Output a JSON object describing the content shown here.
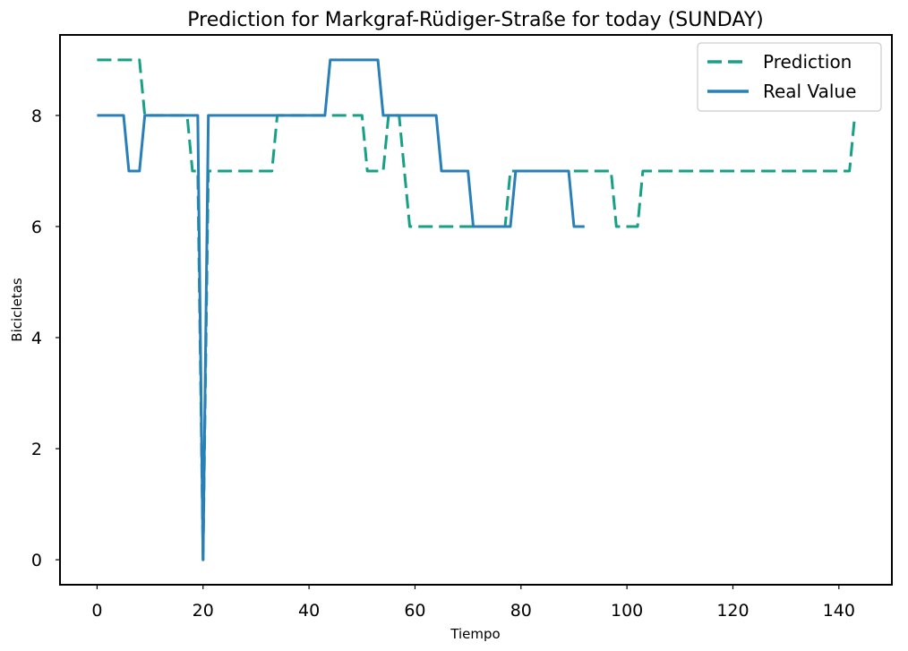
{
  "chart_data": {
    "type": "line",
    "title": "Prediction for Markgraf-Rüdiger-Straße for today (SUNDAY)",
    "xlabel": "Tiempo",
    "ylabel": "Bicicletas",
    "xlim": [
      -7,
      150
    ],
    "ylim": [
      -0.45,
      9.45
    ],
    "xticks": [
      0,
      20,
      40,
      60,
      80,
      100,
      120,
      140
    ],
    "yticks": [
      0,
      2,
      4,
      6,
      8
    ],
    "grid": false,
    "legend_position": "top-right",
    "series": [
      {
        "name": "Prediction",
        "style": "dashed",
        "color": "#16a085",
        "x": [
          0,
          1,
          2,
          3,
          4,
          5,
          6,
          7,
          8,
          9,
          10,
          11,
          12,
          13,
          14,
          15,
          16,
          17,
          18,
          19,
          20,
          21,
          22,
          23,
          24,
          25,
          26,
          27,
          28,
          29,
          30,
          31,
          32,
          33,
          34,
          35,
          36,
          37,
          38,
          39,
          40,
          41,
          42,
          43,
          44,
          45,
          46,
          47,
          48,
          49,
          50,
          51,
          52,
          53,
          54,
          55,
          56,
          57,
          58,
          59,
          60,
          61,
          62,
          63,
          64,
          65,
          66,
          67,
          68,
          69,
          70,
          71,
          72,
          73,
          74,
          75,
          76,
          77,
          78,
          79,
          80,
          81,
          82,
          83,
          84,
          85,
          86,
          87,
          88,
          89,
          90,
          91,
          92,
          93,
          94,
          95,
          96,
          97,
          98,
          99,
          100,
          101,
          102,
          103,
          104,
          105,
          106,
          107,
          108,
          109,
          110,
          111,
          112,
          113,
          114,
          115,
          116,
          117,
          118,
          119,
          120,
          121,
          122,
          123,
          124,
          125,
          126,
          127,
          128,
          129,
          130,
          131,
          132,
          133,
          134,
          135,
          136,
          137,
          138,
          139,
          140,
          141,
          142,
          143
        ],
        "values": [
          9,
          9,
          9,
          9,
          9,
          9,
          9,
          9,
          9,
          8,
          8,
          8,
          8,
          8,
          8,
          8,
          8,
          8,
          7,
          7,
          0,
          7,
          7,
          7,
          7,
          7,
          7,
          7,
          7,
          7,
          7,
          7,
          7,
          7,
          8,
          8,
          8,
          8,
          8,
          8,
          8,
          8,
          8,
          8,
          8,
          8,
          8,
          8,
          8,
          8,
          8,
          7,
          7,
          7,
          7,
          8,
          8,
          8,
          7,
          6,
          6,
          6,
          6,
          6,
          6,
          6,
          6,
          6,
          6,
          6,
          6,
          6,
          6,
          6,
          6,
          6,
          6,
          6,
          7,
          7,
          7,
          7,
          7,
          7,
          7,
          7,
          7,
          7,
          7,
          7,
          7,
          7,
          7,
          7,
          7,
          7,
          7,
          7,
          6,
          6,
          6,
          6,
          6,
          7,
          7,
          7,
          7,
          7,
          7,
          7,
          7,
          7,
          7,
          7,
          7,
          7,
          7,
          7,
          7,
          7,
          7,
          7,
          7,
          7,
          7,
          7,
          7,
          7,
          7,
          7,
          7,
          7,
          7,
          7,
          7,
          7,
          7,
          7,
          7,
          7,
          7,
          7,
          7,
          8
        ]
      },
      {
        "name": "Real Value",
        "style": "solid",
        "color": "#2980b9",
        "x": [
          0,
          1,
          2,
          3,
          4,
          5,
          6,
          7,
          8,
          9,
          10,
          11,
          12,
          13,
          14,
          15,
          16,
          17,
          18,
          19,
          20,
          21,
          22,
          23,
          24,
          25,
          26,
          27,
          28,
          29,
          30,
          31,
          32,
          33,
          34,
          35,
          36,
          37,
          38,
          39,
          40,
          41,
          42,
          43,
          44,
          45,
          46,
          47,
          48,
          49,
          50,
          51,
          52,
          53,
          54,
          55,
          56,
          57,
          58,
          59,
          60,
          61,
          62,
          63,
          64,
          65,
          66,
          67,
          68,
          69,
          70,
          71,
          72,
          73,
          74,
          75,
          76,
          77,
          78,
          79,
          80,
          81,
          82,
          83,
          84,
          85,
          86,
          87,
          88,
          89,
          90,
          91,
          92
        ],
        "values": [
          8,
          8,
          8,
          8,
          8,
          8,
          7,
          7,
          7,
          8,
          8,
          8,
          8,
          8,
          8,
          8,
          8,
          8,
          8,
          8,
          0,
          8,
          8,
          8,
          8,
          8,
          8,
          8,
          8,
          8,
          8,
          8,
          8,
          8,
          8,
          8,
          8,
          8,
          8,
          8,
          8,
          8,
          8,
          8,
          9,
          9,
          9,
          9,
          9,
          9,
          9,
          9,
          9,
          9,
          8,
          8,
          8,
          8,
          8,
          8,
          8,
          8,
          8,
          8,
          8,
          7,
          7,
          7,
          7,
          7,
          7,
          6,
          6,
          6,
          6,
          6,
          6,
          6,
          6,
          7,
          7,
          7,
          7,
          7,
          7,
          7,
          7,
          7,
          7,
          7,
          6,
          6,
          6
        ]
      }
    ]
  }
}
